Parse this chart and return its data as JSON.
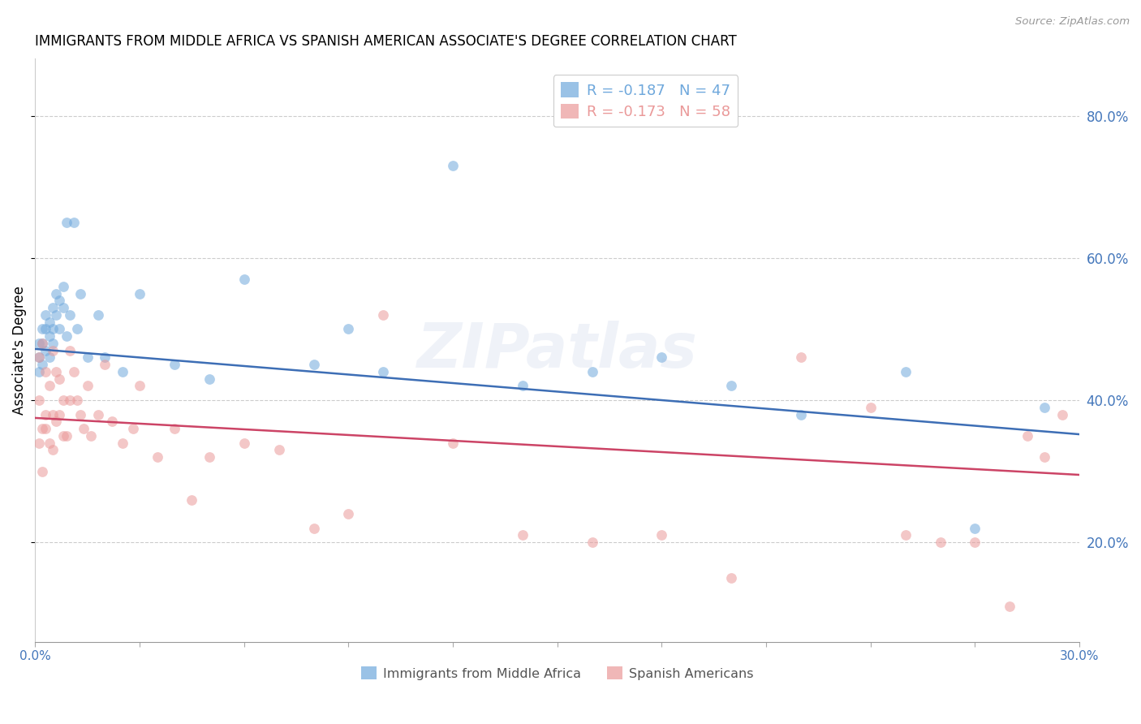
{
  "title": "IMMIGRANTS FROM MIDDLE AFRICA VS SPANISH AMERICAN ASSOCIATE'S DEGREE CORRELATION CHART",
  "source": "Source: ZipAtlas.com",
  "ylabel": "Associate's Degree",
  "right_yticks": [
    0.2,
    0.4,
    0.6,
    0.8
  ],
  "xlim": [
    0.0,
    0.3
  ],
  "ylim": [
    0.06,
    0.88
  ],
  "legend_entries": [
    {
      "label": "R = -0.187   N = 47",
      "color": "#6fa8dc"
    },
    {
      "label": "R = -0.173   N = 58",
      "color": "#ea9999"
    }
  ],
  "legend_bottom_labels": [
    "Immigrants from Middle Africa",
    "Spanish Americans"
  ],
  "legend_bottom_colors": [
    "#6fa8dc",
    "#ea9999"
  ],
  "blue_scatter_x": [
    0.001,
    0.001,
    0.001,
    0.002,
    0.002,
    0.002,
    0.003,
    0.003,
    0.003,
    0.004,
    0.004,
    0.004,
    0.005,
    0.005,
    0.005,
    0.006,
    0.006,
    0.007,
    0.007,
    0.008,
    0.008,
    0.009,
    0.009,
    0.01,
    0.011,
    0.012,
    0.013,
    0.015,
    0.018,
    0.02,
    0.025,
    0.03,
    0.04,
    0.05,
    0.06,
    0.08,
    0.09,
    0.1,
    0.12,
    0.14,
    0.16,
    0.18,
    0.2,
    0.22,
    0.25,
    0.27,
    0.29
  ],
  "blue_scatter_y": [
    0.48,
    0.46,
    0.44,
    0.5,
    0.48,
    0.45,
    0.52,
    0.5,
    0.47,
    0.51,
    0.49,
    0.46,
    0.53,
    0.5,
    0.48,
    0.55,
    0.52,
    0.54,
    0.5,
    0.56,
    0.53,
    0.65,
    0.49,
    0.52,
    0.65,
    0.5,
    0.55,
    0.46,
    0.52,
    0.46,
    0.44,
    0.55,
    0.45,
    0.43,
    0.57,
    0.45,
    0.5,
    0.44,
    0.73,
    0.42,
    0.44,
    0.46,
    0.42,
    0.38,
    0.44,
    0.22,
    0.39
  ],
  "pink_scatter_x": [
    0.001,
    0.001,
    0.001,
    0.002,
    0.002,
    0.002,
    0.003,
    0.003,
    0.003,
    0.004,
    0.004,
    0.005,
    0.005,
    0.005,
    0.006,
    0.006,
    0.007,
    0.007,
    0.008,
    0.008,
    0.009,
    0.01,
    0.01,
    0.011,
    0.012,
    0.013,
    0.014,
    0.015,
    0.016,
    0.018,
    0.02,
    0.022,
    0.025,
    0.028,
    0.03,
    0.035,
    0.04,
    0.045,
    0.05,
    0.06,
    0.07,
    0.08,
    0.09,
    0.1,
    0.12,
    0.14,
    0.16,
    0.18,
    0.2,
    0.22,
    0.24,
    0.25,
    0.26,
    0.27,
    0.28,
    0.285,
    0.29,
    0.295
  ],
  "pink_scatter_y": [
    0.46,
    0.4,
    0.34,
    0.48,
    0.36,
    0.3,
    0.44,
    0.38,
    0.36,
    0.42,
    0.34,
    0.47,
    0.38,
    0.33,
    0.44,
    0.37,
    0.43,
    0.38,
    0.4,
    0.35,
    0.35,
    0.47,
    0.4,
    0.44,
    0.4,
    0.38,
    0.36,
    0.42,
    0.35,
    0.38,
    0.45,
    0.37,
    0.34,
    0.36,
    0.42,
    0.32,
    0.36,
    0.26,
    0.32,
    0.34,
    0.33,
    0.22,
    0.24,
    0.52,
    0.34,
    0.21,
    0.2,
    0.21,
    0.15,
    0.46,
    0.39,
    0.21,
    0.2,
    0.2,
    0.11,
    0.35,
    0.32,
    0.38
  ],
  "blue_line_x": [
    0.0,
    0.3
  ],
  "blue_line_y": [
    0.472,
    0.352
  ],
  "pink_line_x": [
    0.0,
    0.3
  ],
  "pink_line_y": [
    0.375,
    0.295
  ],
  "blue_dot_color": "#6fa8dc",
  "pink_dot_color": "#ea9999",
  "blue_line_color": "#3d6eb5",
  "pink_line_color": "#cc4466",
  "scatter_alpha": 0.55,
  "scatter_size": 85,
  "grid_color": "#cccccc",
  "background_color": "#ffffff",
  "title_fontsize": 12,
  "axis_label_fontsize": 12,
  "tick_label_fontsize": 11,
  "right_tick_color": "#4477bb",
  "watermark_text": "ZIPatlas",
  "watermark_color": "#aabbdd",
  "watermark_alpha": 0.18,
  "watermark_fontsize": 55
}
